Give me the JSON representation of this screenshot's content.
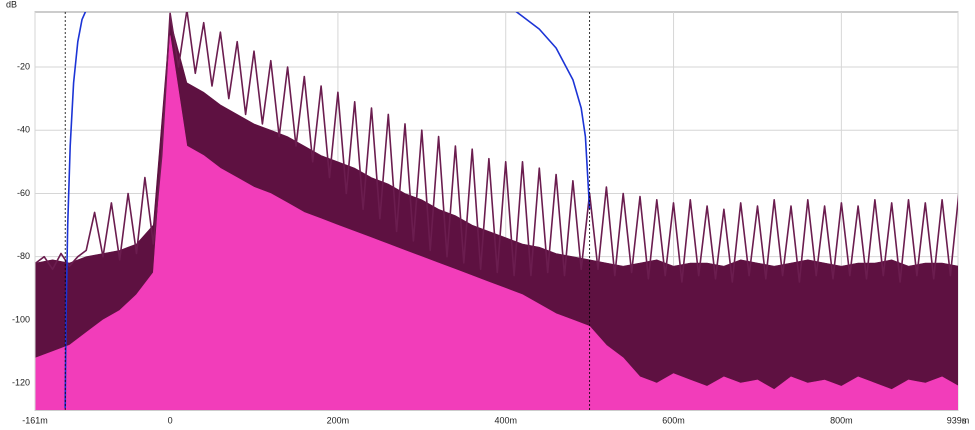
{
  "chart_data": {
    "type": "line",
    "ylabel": "dB",
    "xlabel": "s",
    "xlim": [
      -0.161,
      0.939
    ],
    "ylim": [
      -128.5,
      -2.6
    ],
    "xticks": [
      {
        "value": -0.161,
        "label": "-161m"
      },
      0,
      {
        "value": 0.2,
        "label": "200m"
      },
      {
        "value": 0.4,
        "label": "400m"
      },
      {
        "value": 0.6,
        "label": "600m"
      },
      {
        "value": 0.8,
        "label": "800m"
      },
      {
        "value": 0.939,
        "label": "939m"
      }
    ],
    "yticks": [
      -20,
      -40,
      -60,
      -80,
      -100,
      -120
    ],
    "grid": true,
    "markers": [
      -0.125,
      0.5
    ],
    "series": [
      {
        "type": "area",
        "color": "#5e1141",
        "x": [
          -0.16,
          -0.14,
          -0.12,
          -0.1,
          -0.08,
          -0.06,
          -0.04,
          -0.02,
          0,
          0.02,
          0.04,
          0.06,
          0.08,
          0.1,
          0.12,
          0.14,
          0.16,
          0.18,
          0.2,
          0.22,
          0.24,
          0.26,
          0.28,
          0.3,
          0.32,
          0.34,
          0.36,
          0.38,
          0.4,
          0.42,
          0.44,
          0.46,
          0.48,
          0.5,
          0.52,
          0.54,
          0.56,
          0.58,
          0.6,
          0.62,
          0.64,
          0.66,
          0.68,
          0.7,
          0.72,
          0.74,
          0.76,
          0.78,
          0.8,
          0.82,
          0.84,
          0.86,
          0.88,
          0.9,
          0.92,
          0.94
        ],
        "values": [
          -82,
          -81,
          -82,
          -80,
          -79,
          -78,
          -76,
          -70,
          -5,
          -25,
          -28,
          -32,
          -35,
          -38,
          -40,
          -42,
          -45,
          -48,
          -50,
          -52,
          -55,
          -57,
          -60,
          -62,
          -65,
          -67,
          -70,
          -72,
          -74,
          -76,
          -77,
          -79,
          -80,
          -81,
          -82,
          -83,
          -82,
          -81,
          -83,
          -82,
          -82,
          -83,
          -81,
          -82,
          -83,
          -82,
          -81,
          -82,
          -83,
          -82,
          -82,
          -81,
          -83,
          -82,
          -82,
          -83
        ]
      },
      {
        "type": "area",
        "color": "#f23dba",
        "x": [
          -0.16,
          -0.14,
          -0.12,
          -0.1,
          -0.08,
          -0.06,
          -0.04,
          -0.02,
          0,
          0.02,
          0.04,
          0.06,
          0.08,
          0.1,
          0.12,
          0.14,
          0.16,
          0.18,
          0.2,
          0.22,
          0.24,
          0.26,
          0.28,
          0.3,
          0.32,
          0.34,
          0.36,
          0.38,
          0.4,
          0.42,
          0.44,
          0.46,
          0.48,
          0.5,
          0.52,
          0.54,
          0.56,
          0.58,
          0.6,
          0.62,
          0.64,
          0.66,
          0.68,
          0.7,
          0.72,
          0.74,
          0.76,
          0.78,
          0.8,
          0.82,
          0.84,
          0.86,
          0.88,
          0.9,
          0.92,
          0.94
        ],
        "values": [
          -112,
          -110,
          -108,
          -104,
          -100,
          -97,
          -92,
          -85,
          -10,
          -45,
          -48,
          -52,
          -55,
          -58,
          -60,
          -63,
          -66,
          -68,
          -70,
          -72,
          -74,
          -76,
          -78,
          -80,
          -82,
          -84,
          -86,
          -88,
          -90,
          -92,
          -95,
          -98,
          -100,
          -102,
          -108,
          -112,
          -118,
          -120,
          -117,
          -119,
          -121,
          -118,
          -120,
          -119,
          -122,
          -118,
          -120,
          -119,
          -121,
          -118,
          -120,
          -122,
          -119,
          -120,
          -118,
          -121
        ]
      },
      {
        "type": "line",
        "color": "#6b1d4f",
        "x": [
          -0.16,
          -0.15,
          -0.14,
          -0.13,
          -0.12,
          -0.11,
          -0.1,
          -0.09,
          -0.08,
          -0.07,
          -0.06,
          -0.05,
          -0.04,
          -0.03,
          -0.02,
          -0.01,
          0,
          0.01,
          0.02,
          0.03,
          0.04,
          0.05,
          0.06,
          0.07,
          0.08,
          0.09,
          0.1,
          0.11,
          0.12,
          0.13,
          0.14,
          0.15,
          0.16,
          0.17,
          0.18,
          0.19,
          0.2,
          0.21,
          0.22,
          0.23,
          0.24,
          0.25,
          0.26,
          0.27,
          0.28,
          0.29,
          0.3,
          0.31,
          0.32,
          0.33,
          0.34,
          0.35,
          0.36,
          0.37,
          0.38,
          0.39,
          0.4,
          0.41,
          0.42,
          0.43,
          0.44,
          0.45,
          0.46,
          0.47,
          0.48,
          0.49,
          0.5,
          0.51,
          0.52,
          0.53,
          0.54,
          0.55,
          0.56,
          0.57,
          0.58,
          0.59,
          0.6,
          0.61,
          0.62,
          0.63,
          0.64,
          0.65,
          0.66,
          0.67,
          0.68,
          0.69,
          0.7,
          0.71,
          0.72,
          0.73,
          0.74,
          0.75,
          0.76,
          0.77,
          0.78,
          0.79,
          0.8,
          0.81,
          0.82,
          0.83,
          0.84,
          0.85,
          0.86,
          0.87,
          0.88,
          0.89,
          0.9,
          0.91,
          0.92,
          0.93,
          0.94
        ],
        "values": [
          -82,
          -80,
          -84,
          -79,
          -83,
          -80,
          -78,
          -66,
          -80,
          -63,
          -81,
          -60,
          -79,
          -55,
          -76,
          -48,
          -3,
          -20,
          -2,
          -22,
          -6,
          -26,
          -9,
          -30,
          -12,
          -35,
          -15,
          -38,
          -18,
          -42,
          -20,
          -45,
          -23,
          -50,
          -26,
          -55,
          -28,
          -60,
          -31,
          -65,
          -33,
          -68,
          -35,
          -72,
          -38,
          -75,
          -40,
          -78,
          -42,
          -80,
          -45,
          -82,
          -46,
          -84,
          -49,
          -85,
          -50,
          -86,
          -50,
          -86,
          -52,
          -85,
          -54,
          -86,
          -56,
          -84,
          -60,
          -84,
          -58,
          -86,
          -60,
          -85,
          -61,
          -87,
          -62,
          -86,
          -63,
          -88,
          -62,
          -86,
          -64,
          -87,
          -65,
          -88,
          -63,
          -86,
          -64,
          -87,
          -62,
          -86,
          -64,
          -88,
          -62,
          -86,
          -64,
          -87,
          -63,
          -86,
          -64,
          -87,
          -62,
          -86,
          -63,
          -88,
          -62,
          -86,
          -63,
          -87,
          -62,
          -86,
          -60
        ]
      },
      {
        "type": "line",
        "color": "#1c34d6",
        "x": [
          -0.125,
          -0.124,
          -0.122,
          -0.119,
          -0.115,
          -0.11,
          -0.105,
          -0.1,
          -0.09,
          0.4,
          0.41,
          0.42,
          0.44,
          0.46,
          0.48,
          0.49,
          0.495,
          0.5
        ],
        "values": [
          -128,
          -100,
          -70,
          -45,
          -25,
          -12,
          -5,
          -2,
          0,
          0,
          -2,
          -4,
          -8,
          -14,
          -24,
          -33,
          -42,
          -65
        ]
      }
    ]
  }
}
